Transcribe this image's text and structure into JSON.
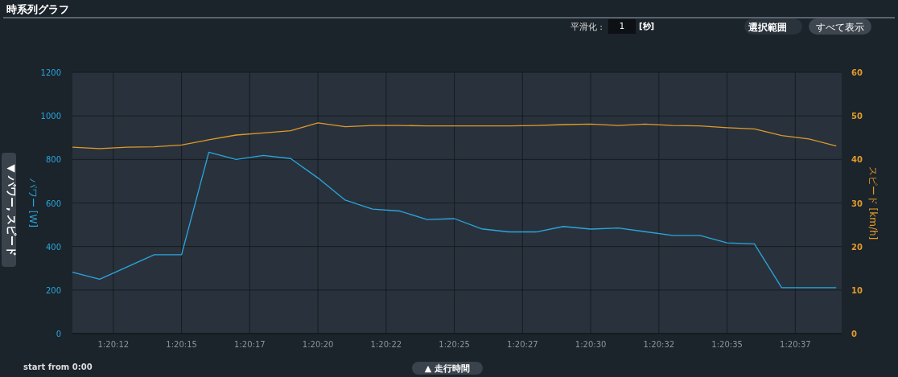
{
  "chart_data": {
    "type": "line",
    "title": "時系列グラフ",
    "xlabel": "▲ 走行時間",
    "ylabel": "パワー [W]",
    "y2label": "スピード [km/h]",
    "annotations": [
      "平滑化 :",
      "1",
      "[秒]",
      "選択範囲",
      "すべて表示",
      "start from 0:00",
      "▼ パワー, スピード"
    ],
    "x": [
      4811,
      4812,
      4813,
      4814,
      4815,
      4816,
      4817,
      4818,
      4819,
      4820,
      4821,
      4822,
      4823,
      4824,
      4825,
      4826,
      4827,
      4828,
      4829,
      4830,
      4831,
      4832,
      4833,
      4834,
      4835,
      4836,
      4837,
      4838,
      4839
    ],
    "series": [
      {
        "color": "#2aa6dc",
        "values": [
          282,
          250,
          306,
          362,
          362,
          833,
          800,
          818,
          804,
          715,
          613,
          572,
          563,
          524,
          528,
          481,
          467,
          467,
          492,
          480,
          485,
          468,
          451,
          451,
          417,
          412,
          211,
          211,
          211
        ]
      },
      {
        "color": "#e09a2a",
        "axis": "y2",
        "values": [
          42.8,
          42.5,
          42.8,
          42.9,
          43.3,
          44.5,
          45.6,
          46.1,
          46.6,
          48.4,
          47.5,
          47.8,
          47.8,
          47.7,
          47.7,
          47.7,
          47.7,
          47.8,
          48.0,
          48.1,
          47.8,
          48.1,
          47.8,
          47.7,
          47.3,
          47.0,
          45.5,
          44.7,
          43.1
        ]
      }
    ],
    "xlim": [
      4811,
      4839.2
    ],
    "xticks": [
      {
        "value": 4812.5,
        "label": "1:20:12"
      },
      {
        "value": 4815,
        "label": "1:20:15"
      },
      {
        "value": 4817.5,
        "label": "1:20:17"
      },
      {
        "value": 4820,
        "label": "1:20:20"
      },
      {
        "value": 4822.5,
        "label": "1:20:22"
      },
      {
        "value": 4825,
        "label": "1:20:25"
      },
      {
        "value": 4827.5,
        "label": "1:20:27"
      },
      {
        "value": 4830,
        "label": "1:20:30"
      },
      {
        "value": 4832.5,
        "label": "1:20:32"
      },
      {
        "value": 4835,
        "label": "1:20:35"
      },
      {
        "value": 4837.5,
        "label": "1:20:37"
      }
    ],
    "ylim": [
      0,
      1200
    ],
    "yticks": [
      0,
      200,
      400,
      600,
      800,
      1000,
      1200
    ],
    "y2lim": [
      0,
      60
    ],
    "y2ticks": [
      0,
      10,
      20,
      30,
      40,
      50,
      60
    ],
    "grid": true,
    "marker": "none",
    "line_style": "solid"
  }
}
